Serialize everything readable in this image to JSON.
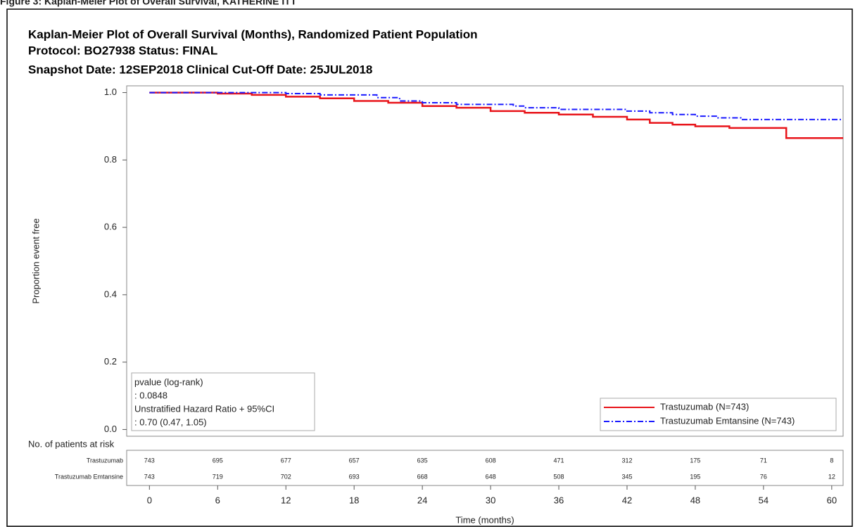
{
  "caption": "Figure 3: Kaplan-Meier Plot of Overall Survival, KATHERINE ITT",
  "chart_data": {
    "type": "step",
    "title": "Kaplan-Meier Plot of Overall Survival (Months), Randomized Patient Population",
    "subtitle": "Protocol: BO27938   Status: FINAL",
    "subtitle2": "Snapshot Date: 12SEP2018   Clinical Cut-Off Date: 25JUL2018",
    "y_label": "Proportion event free",
    "x_label": "Time (months)",
    "x": [
      0,
      6,
      9,
      12,
      15,
      18,
      20,
      21,
      22,
      24,
      27,
      30,
      32,
      33,
      36,
      39,
      42,
      44,
      46,
      48,
      50,
      51,
      52,
      56,
      61
    ],
    "series": [
      {
        "name": "Trastuzumab (N=743)",
        "color": "#e8141a",
        "dash": "none",
        "values": [
          1,
          0.997,
          0.993,
          0.988,
          0.983,
          0.975,
          0.975,
          0.97,
          0.97,
          0.96,
          0.955,
          0.945,
          0.945,
          0.94,
          0.935,
          0.928,
          0.92,
          0.91,
          0.905,
          0.9,
          0.9,
          0.895,
          0.895,
          0.865,
          0.865
        ]
      },
      {
        "name": "Trastuzumab Emtansine (N=743)",
        "color": "#1a1aff",
        "dash": "8,3,2,3",
        "values": [
          1,
          1,
          1,
          0.997,
          0.993,
          0.993,
          0.985,
          0.985,
          0.975,
          0.97,
          0.965,
          0.965,
          0.96,
          0.955,
          0.95,
          0.95,
          0.945,
          0.94,
          0.935,
          0.93,
          0.925,
          0.925,
          0.92,
          0.92,
          0.92
        ]
      }
    ],
    "xlim": [
      -2,
      61
    ],
    "ylim": [
      -0.02,
      1.02
    ],
    "xticks": [
      0,
      6,
      12,
      18,
      24,
      30,
      36,
      42,
      48,
      54,
      60
    ],
    "yticks": [
      {
        "value": 0,
        "label": "0.0"
      },
      0.2,
      0.4,
      0.6,
      0.8,
      {
        "value": 1,
        "label": "1.0"
      }
    ],
    "legend_position": "lower right",
    "annotation": [
      "pvalue (log-rank)",
      ": 0.0848",
      "Unstratified Hazard Ratio + 95%CI",
      ": 0.70 (0.47, 1.05)"
    ],
    "risk_table": {
      "title": "No. of patients at risk",
      "rows": [
        {
          "name": "Trastuzumab",
          "values": [
            743,
            695,
            677,
            657,
            635,
            608,
            471,
            312,
            175,
            71,
            8
          ]
        },
        {
          "name": "Trastuzumab Emtansine",
          "values": [
            743,
            719,
            702,
            693,
            668,
            648,
            508,
            345,
            195,
            76,
            12
          ]
        }
      ]
    }
  }
}
